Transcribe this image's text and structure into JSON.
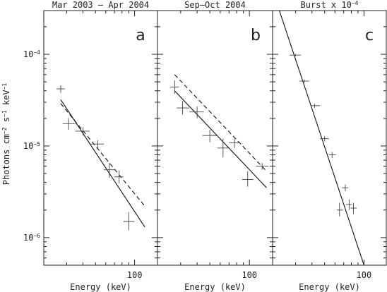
{
  "chart_data": {
    "type": "scatter",
    "x_scale": "log",
    "y_scale": "log",
    "xlabel": "Energy (keV)",
    "ylabel_parts": {
      "base": "Photons cm",
      "e1": "−2",
      "mid": " s",
      "e2": "−1",
      "mid2": " keV",
      "e3": "−1"
    },
    "x_tick_label": "100",
    "y_tick_labels": [
      {
        "value": 0.0001,
        "base": "10",
        "exp": "−4"
      },
      {
        "value": 1e-05,
        "base": "10",
        "exp": "−5"
      },
      {
        "value": 1e-06,
        "base": "10",
        "exp": "−6"
      }
    ],
    "ylim": [
      5e-07,
      0.0003
    ],
    "panels": [
      {
        "title": "Mar 2003 – Apr 2004",
        "letter": "a",
        "xlim": [
          20,
          150
        ],
        "points": [
          {
            "x": 27,
            "y": 4.2e-05,
            "xerr": [
              25,
              29
            ],
            "yerr": [
              3.8e-05,
              4.6e-05
            ]
          },
          {
            "x": 31,
            "y": 1.75e-05,
            "xerr": [
              28,
              35
            ],
            "yerr": [
              1.5e-05,
              2e-05
            ]
          },
          {
            "x": 40,
            "y": 1.45e-05,
            "xerr": [
              35,
              45
            ],
            "yerr": [
              1.3e-05,
              1.6e-05
            ]
          },
          {
            "x": 52,
            "y": 1.05e-05,
            "xerr": [
              45,
              58
            ],
            "yerr": [
              9.5e-06,
              1.15e-05
            ]
          },
          {
            "x": 64,
            "y": 5.5e-06,
            "xerr": [
              58,
              70
            ],
            "yerr": [
              4.5e-06,
              6.5e-06
            ]
          },
          {
            "x": 76,
            "y": 4.6e-06,
            "xerr": [
              70,
              82
            ],
            "yerr": [
              3.9e-06,
              5.4e-06
            ]
          },
          {
            "x": 90,
            "y": 1.5e-06,
            "xerr": [
              82,
              100
            ],
            "yerr": [
              1.2e-06,
              1.9e-06
            ]
          }
        ],
        "model_solid": [
          [
            27,
            3.2e-05
          ],
          [
            120,
            1.3e-06
          ]
        ],
        "model_dashed": [
          [
            27,
            2.9e-05
          ],
          [
            120,
            2.2e-06
          ]
        ]
      },
      {
        "title": "Sep–Oct 2004",
        "letter": "b",
        "xlim": [
          20,
          150
        ],
        "points": [
          {
            "x": 27,
            "y": 4.4e-05,
            "xerr": [
              25,
              29
            ],
            "yerr": [
              3.7e-05,
              5.2e-05
            ]
          },
          {
            "x": 31,
            "y": 2.6e-05,
            "xerr": [
              28,
              35
            ],
            "yerr": [
              2.2e-05,
              3.1e-05
            ]
          },
          {
            "x": 40,
            "y": 2.35e-05,
            "xerr": [
              35,
              45
            ],
            "yerr": [
              2e-05,
              2.7e-05
            ]
          },
          {
            "x": 50,
            "y": 1.3e-05,
            "xerr": [
              44,
              57
            ],
            "yerr": [
              1.1e-05,
              1.5e-05
            ]
          },
          {
            "x": 63,
            "y": 9.5e-06,
            "xerr": [
              57,
              70
            ],
            "yerr": [
              7.5e-06,
              1.2e-05
            ]
          },
          {
            "x": 77,
            "y": 1.08e-05,
            "xerr": [
              70,
              84
            ],
            "yerr": [
              9.5e-06,
              1.2e-05
            ]
          },
          {
            "x": 97,
            "y": 4.3e-06,
            "xerr": [
              88,
              107
            ],
            "yerr": [
              3.6e-06,
              5.3e-06
            ]
          },
          {
            "x": 125,
            "y": 6e-06,
            "xerr": [
              112,
              140
            ],
            "yerr": [
              5.5e-06,
              6.5e-06
            ]
          }
        ],
        "model_solid": [
          [
            27,
            4e-05
          ],
          [
            135,
            3.5e-06
          ]
        ],
        "model_dashed": [
          [
            27,
            6e-05
          ],
          [
            135,
            5.3e-06
          ]
        ]
      },
      {
        "title": "Burst x 10",
        "title_exp": "−4",
        "letter": "c",
        "xlim": [
          20,
          150
        ],
        "points": [
          {
            "x": 30,
            "y": 9.8e-05,
            "xerr": [
              27,
              33
            ],
            "yerr": [
              9.5e-05,
              0.000101
            ]
          },
          {
            "x": 35,
            "y": 5.1e-05,
            "xerr": [
              32,
              38
            ],
            "yerr": [
              4.9e-05,
              5.3e-05
            ]
          },
          {
            "x": 42,
            "y": 2.75e-05,
            "xerr": [
              39,
              46
            ],
            "yerr": [
              2.6e-05,
              2.9e-05
            ]
          },
          {
            "x": 50,
            "y": 1.2e-05,
            "xerr": [
              46,
              54
            ],
            "yerr": [
              1.12e-05,
              1.28e-05
            ]
          },
          {
            "x": 57,
            "y": 8e-06,
            "xerr": [
              54,
              61
            ],
            "yerr": [
              7.4e-06,
              8.6e-06
            ]
          },
          {
            "x": 65,
            "y": 2e-06,
            "xerr": [
              62,
              69
            ],
            "yerr": [
              1.7e-06,
              2.4e-06
            ]
          },
          {
            "x": 72,
            "y": 3.5e-06,
            "xerr": [
              68,
              76
            ],
            "yerr": [
              3.2e-06,
              3.8e-06
            ]
          },
          {
            "x": 77,
            "y": 2.3e-06,
            "xerr": [
              73,
              81
            ],
            "yerr": [
              2e-06,
              2.6e-06
            ]
          },
          {
            "x": 83,
            "y": 2.1e-06,
            "xerr": [
              79,
              88
            ],
            "yerr": [
              1.8e-06,
              2.4e-06
            ]
          }
        ],
        "model_solid": [
          [
            20,
            0.0005
          ],
          [
            100,
            5e-07
          ]
        ]
      }
    ]
  }
}
